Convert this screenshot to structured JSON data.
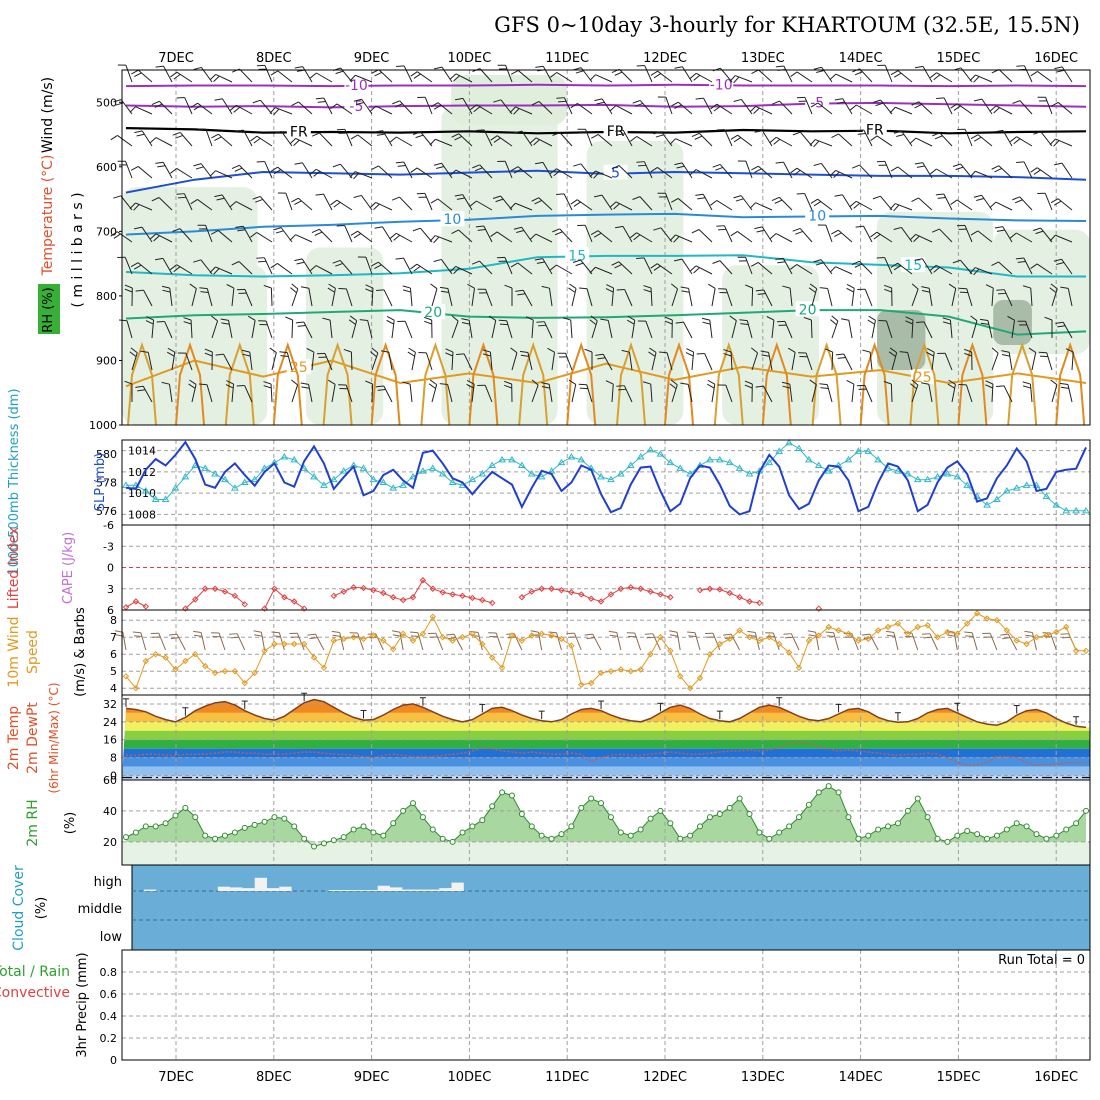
{
  "chart_data": {
    "type": "meteogram",
    "title": "GFS 0~10day 3-hourly for KHARTOUM (32.5E, 15.5N)",
    "dates": [
      "7DEC",
      "8DEC",
      "9DEC",
      "10DEC",
      "11DEC",
      "12DEC",
      "13DEC",
      "14DEC",
      "15DEC",
      "16DEC"
    ],
    "run_total_text": "Run Total = 0",
    "panels": [
      {
        "id": "upper-air",
        "labels": [
          {
            "text": "Wind (m/s)",
            "color": "#000000"
          },
          {
            "text": "Temperature (°C)",
            "color": "#e0502a"
          },
          {
            "text": "RH (%)",
            "color": "#000000",
            "bg": "#38b038"
          },
          {
            "text": "( m i l l i b a r s )",
            "color": "#000000"
          }
        ],
        "ylim": [
          1000,
          450
        ],
        "yticks": [
          500,
          600,
          700,
          800,
          900,
          1000
        ],
        "isotherms": [
          {
            "t": -10,
            "p": [
              475,
              474,
              474,
              475,
              474,
              474,
              473,
              474,
              473,
              474,
              474,
              474,
              475,
              474,
              475
            ],
            "color": "#9b30c0",
            "label": "-10",
            "label_x": [
              0.24,
              0.62
            ]
          },
          {
            "t": -5,
            "p": [
              505,
              507,
              506,
              508,
              506,
              505,
              505,
              504,
              507,
              506,
              502,
              501,
              503,
              505,
              507
            ],
            "color": "#9b30c0",
            "label": "-5",
            "label_x": [
              0.24,
              0.72
            ]
          },
          {
            "t": "FR",
            "p": [
              540,
              542,
              547,
              546,
              547,
              545,
              548,
              546,
              547,
              543,
              545,
              544,
              548,
              546,
              545
            ],
            "color": "#000000",
            "label": "FR",
            "label_x": [
              0.18,
              0.51,
              0.78
            ]
          },
          {
            "t": 5,
            "p": [
              640,
              620,
              608,
              610,
              612,
              609,
              606,
              611,
              608,
              610,
              612,
              614,
              614,
              616,
              620
            ],
            "color": "#1f4fd0",
            "label": "5",
            "label_x": [
              0.51
            ]
          },
          {
            "t": 10,
            "p": [
              705,
              700,
              693,
              690,
              685,
              682,
              676,
              674,
              673,
              678,
              677,
              676,
              680,
              683,
              684
            ],
            "color": "#2a8ad8",
            "label": "10",
            "label_x": [
              0.34,
              0.72
            ]
          },
          {
            "t": 15,
            "p": [
              763,
              768,
              770,
              768,
              765,
              758,
              740,
              738,
              738,
              737,
              748,
              752,
              756,
              770,
              770
            ],
            "color": "#20b8c4",
            "label": "15",
            "label_x": [
              0.47,
              0.82
            ]
          },
          {
            "t": 20,
            "p": [
              835,
              830,
              828,
              825,
              822,
              832,
              834,
              833,
              830,
              826,
              822,
              822,
              832,
              860,
              855
            ],
            "color": "#20a878",
            "label": "20",
            "label_x": [
              0.32,
              0.71
            ]
          },
          {
            "t": 25,
            "p": [
              940,
              900,
              925,
              900,
              935,
              920,
              935,
              905,
              930,
              910,
              925,
              915,
              935,
              920,
              935
            ],
            "color": "#e09a20",
            "label": "25",
            "label_x": [
              0.18,
              0.83
            ]
          }
        ]
      },
      {
        "id": "slp-thickness",
        "left_label": {
          "text": "1000-500mb Thickness (dm)",
          "color": "#20a0c0"
        },
        "right_label": {
          "text": "SLP (mb)",
          "color": "#1f4fd0"
        },
        "thickness_ticks": [
          576,
          578,
          580
        ],
        "slp_ticks": [
          1008,
          1010,
          1012,
          1014
        ],
        "slp_ylim": [
          1007,
          1015
        ],
        "slp": [
          1010.5,
          1010.4,
          1012.2,
          1013.2,
          1012.6,
          1013.6,
          1014.8,
          1013.2,
          1010.8,
          1010.5,
          1012.0,
          1012.8,
          1011.7,
          1010.7,
          1012.0,
          1012.8,
          1011.0,
          1010.6,
          1013.0,
          1014.4,
          1012.8,
          1010.4,
          1011.5,
          1012.5,
          1009.8,
          1010.2,
          1011.7,
          1012.2,
          1011.2,
          1010.5,
          1013.8,
          1014.0,
          1012.8,
          1011.4,
          1011.0,
          1009.9,
          1011.0,
          1012.0,
          1011.4,
          1010.8,
          1008.7,
          1010.5,
          1012.1,
          1011.8,
          1010.2,
          1011.0,
          1012.6,
          1012.2,
          1009.9,
          1008.2,
          1008.6,
          1010.8,
          1012.4,
          1012.5,
          1010.2,
          1008.3,
          1009.0,
          1011.4,
          1012.6,
          1012.4,
          1010.8,
          1008.8,
          1008.0,
          1008.3,
          1012.0,
          1013.6,
          1012.5,
          1009.8,
          1008.5,
          1009.0,
          1011.2,
          1012.6,
          1012.5,
          1011.2,
          1008.3,
          1008.7,
          1011.0,
          1012.8,
          1012.5,
          1011.2,
          1008.3,
          1008.9,
          1011.0,
          1012.4,
          1013.0,
          1011.8,
          1009.2,
          1009.5,
          1011.4,
          1012.6,
          1014.2,
          1013.0,
          1010.2,
          1010.4,
          1012.0,
          1012.2,
          1012.3,
          1014.3
        ],
        "thickness": [
          577.8,
          577.8,
          577.4,
          576.8,
          576.8,
          577.6,
          578.4,
          579.2,
          579.0,
          578.6,
          578.2,
          577.6,
          578.0,
          578.2,
          579.0,
          579.4,
          579.8,
          579.6,
          579.0,
          578.4,
          577.8,
          578.2,
          578.8,
          579.2,
          579.0,
          578.2,
          578.0,
          577.6,
          577.8,
          578.4,
          578.8,
          579.0,
          578.6,
          578.0,
          577.8,
          578.2,
          578.6,
          579.2,
          579.6,
          579.6,
          579.2,
          578.6,
          578.4,
          578.8,
          579.4,
          579.8,
          579.6,
          579.0,
          578.4,
          578.2,
          578.6,
          579.2,
          579.8,
          580.3,
          580.0,
          579.4,
          579.0,
          578.6,
          579.2,
          579.6,
          579.6,
          579.4,
          579.0,
          578.6,
          578.8,
          579.4,
          580.2,
          580.8,
          580.4,
          579.6,
          579.2,
          578.8,
          579.2,
          579.6,
          580.2,
          580.2,
          579.6,
          579.0,
          578.8,
          578.6,
          578.2,
          578.2,
          578.4,
          578.6,
          578.4,
          577.8,
          577.0,
          576.4,
          576.8,
          577.4,
          577.6,
          577.8,
          577.8,
          577.0,
          576.4,
          576.0,
          576.0,
          576.0
        ]
      },
      {
        "id": "cape-li",
        "left_label": {
          "text": "Lifted Index",
          "color": "#e04040"
        },
        "right_label": {
          "text": "CAPE (J/kg)",
          "color": "#c070d0"
        },
        "yticks": [
          -6,
          -3,
          0,
          3,
          6
        ],
        "ylim": [
          -6,
          6
        ],
        "lifted_index": [
          5.6,
          4.8,
          5.5,
          null,
          null,
          null,
          5.8,
          4.5,
          3.0,
          3.0,
          3.4,
          4.0,
          5.2,
          null,
          5.8,
          3.0,
          4.2,
          4.8,
          5.8,
          null,
          null,
          4.0,
          3.4,
          2.8,
          2.9,
          3.2,
          3.6,
          4.2,
          4.6,
          4.2,
          1.8,
          3.0,
          3.5,
          3.8,
          4.0,
          4.3,
          4.6,
          5.0,
          null,
          null,
          4.2,
          3.4,
          3.0,
          3.0,
          3.2,
          3.5,
          3.8,
          4.4,
          4.8,
          3.8,
          3.0,
          2.8,
          3.0,
          3.4,
          3.8,
          4.2,
          null,
          null,
          3.2,
          3.0,
          3.1,
          3.6,
          4.2,
          4.8,
          5.0,
          null,
          null,
          null,
          null,
          null,
          5.8,
          null,
          null,
          null,
          null,
          null,
          null,
          null,
          null,
          null,
          null,
          null,
          null,
          null,
          null,
          null,
          null,
          null,
          null,
          null,
          null,
          null,
          null,
          null,
          null,
          null,
          null,
          null
        ]
      },
      {
        "id": "wind10m",
        "left_label": {
          "text": "10m Wind",
          "color": "#e09a20"
        },
        "mid_label": {
          "text": "Speed",
          "color": "#e09a20"
        },
        "right_label": {
          "text": "(m/s) & Barbs",
          "color": "#000000"
        },
        "yticks": [
          4,
          5,
          6,
          7,
          8
        ],
        "ylim": [
          3.6,
          8.6
        ],
        "speed": [
          4.7,
          4.0,
          5.6,
          6.0,
          5.8,
          5.1,
          5.6,
          6.0,
          5.3,
          4.9,
          5.0,
          5.0,
          4.3,
          4.9,
          6.2,
          6.6,
          6.6,
          6.6,
          6.6,
          5.8,
          5.2,
          6.8,
          6.9,
          7.0,
          6.9,
          7.1,
          6.8,
          6.3,
          7.2,
          6.8,
          7.2,
          8.2,
          7.0,
          6.8,
          7.0,
          7.2,
          6.6,
          5.8,
          5.2,
          7.1,
          6.8,
          7.1,
          7.2,
          7.1,
          6.9,
          6.5,
          4.2,
          4.3,
          4.9,
          5.0,
          5.1,
          5.0,
          5.1,
          6.0,
          7.0,
          6.2,
          4.7,
          4.0,
          4.6,
          6.0,
          6.6,
          6.9,
          7.4,
          7.0,
          6.8,
          7.0,
          6.6,
          6.1,
          5.2,
          6.8,
          7.1,
          7.6,
          7.4,
          7.2,
          6.8,
          6.9,
          7.4,
          7.6,
          7.8,
          7.2,
          7.6,
          7.7,
          7.0,
          7.3,
          7.2,
          7.8,
          8.4,
          8.1,
          8.0,
          7.4,
          6.8,
          6.6,
          7.0,
          7.1,
          7.3,
          7.6,
          6.2,
          6.2
        ]
      },
      {
        "id": "temp2m",
        "left_label": {
          "text": "2m Temp",
          "color": "#e0502a"
        },
        "mid_label": {
          "text": "2m DewPt",
          "color": "#e0502a"
        },
        "right_label": {
          "text": "(6hr Min/Max) (°C)",
          "color": "#e0502a"
        },
        "yticks": [
          0,
          8,
          16,
          24,
          32
        ],
        "ylim": [
          -2,
          36
        ],
        "temp": [
          30.0,
          29.5,
          28.5,
          26.5,
          25.0,
          24.0,
          26.0,
          29.0,
          31.0,
          32.5,
          33.0,
          31.5,
          29.0,
          27.0,
          25.5,
          24.8,
          26.5,
          29.5,
          32.5,
          34.0,
          33.0,
          30.5,
          28.0,
          26.0,
          24.8,
          25.0,
          27.0,
          29.5,
          31.5,
          32.0,
          30.5,
          28.5,
          26.5,
          25.0,
          24.0,
          25.0,
          27.5,
          30.0,
          30.5,
          29.0,
          27.0,
          25.5,
          24.5,
          24.0,
          25.0,
          27.5,
          29.5,
          30.0,
          29.0,
          27.0,
          25.5,
          24.5,
          24.0,
          25.5,
          28.0,
          30.5,
          31.5,
          30.0,
          27.5,
          25.5,
          24.5,
          24.0,
          25.5,
          28.0,
          30.5,
          31.5,
          30.5,
          28.5,
          26.5,
          25.0,
          24.5,
          25.5,
          27.5,
          29.5,
          30.0,
          28.5,
          26.0,
          24.5,
          23.8,
          24.0,
          25.5,
          28.0,
          29.5,
          30.0,
          28.0,
          26.0,
          24.0,
          23.0,
          22.5,
          24.0,
          27.0,
          29.0,
          29.5,
          28.0,
          25.5,
          23.5,
          22.0,
          21.5
        ],
        "dewpt": [
          9.0,
          9.0,
          9.5,
          9.5,
          9.0,
          9.0,
          9.5,
          9.5,
          9.5,
          10.0,
          10.5,
          10.5,
          10.0,
          10.0,
          9.5,
          9.5,
          9.5,
          10.0,
          10.5,
          10.5,
          10.0,
          9.5,
          9.5,
          9.0,
          8.5,
          8.0,
          9.0,
          9.5,
          9.0,
          8.5,
          8.5,
          8.5,
          9.0,
          9.5,
          10.0,
          11.0,
          12.5,
          12.0,
          11.0,
          10.5,
          10.0,
          10.5,
          10.0,
          9.5,
          9.5,
          10.0,
          9.5,
          6.0,
          8.0,
          9.0,
          9.5,
          9.0,
          9.0,
          9.5,
          10.0,
          10.5,
          10.0,
          9.5,
          9.5,
          10.0,
          10.5,
          11.0,
          11.0,
          11.5,
          11.0,
          11.5,
          12.5,
          14.5,
          15.0,
          14.5,
          13.0,
          12.0,
          11.0,
          11.5,
          11.0,
          10.5,
          10.0,
          9.5,
          9.0,
          9.5,
          9.5,
          10.0,
          9.5,
          8.0,
          6.0,
          4.5,
          4.5,
          6.0,
          8.5,
          8.5,
          8.0,
          6.0,
          4.5,
          5.0,
          5.0,
          5.5,
          6.0,
          5.5
        ]
      },
      {
        "id": "rh2m",
        "left_label": {
          "text": "2m RH",
          "color": "#2ea02e"
        },
        "right_label": {
          "text": "(%)",
          "color": "#000000"
        },
        "yticks": [
          20,
          40,
          60
        ],
        "ylim": [
          5,
          60
        ],
        "rh": [
          23,
          26,
          30,
          30,
          32,
          37,
          42,
          36,
          24,
          22,
          24,
          26,
          29,
          31,
          33,
          36,
          35,
          30,
          22,
          17,
          19,
          21,
          23,
          28,
          30,
          26,
          24,
          32,
          40,
          45,
          36,
          28,
          22,
          20,
          26,
          30,
          34,
          43,
          52,
          50,
          38,
          30,
          24,
          22,
          25,
          30,
          42,
          48,
          45,
          36,
          26,
          24,
          28,
          35,
          40,
          32,
          22,
          24,
          30,
          36,
          38,
          42,
          48,
          38,
          26,
          22,
          26,
          30,
          36,
          44,
          52,
          56,
          52,
          36,
          22,
          24,
          28,
          30,
          32,
          40,
          48,
          36,
          22,
          20,
          24,
          27,
          25,
          22,
          24,
          28,
          32,
          30,
          25,
          22,
          24,
          28,
          32,
          40
        ]
      },
      {
        "id": "cloud",
        "left_label": {
          "text": "Cloud Cover",
          "color": "#20a0c0"
        },
        "right_label": {
          "text": "(%)",
          "color": "#000000"
        },
        "ylevels": [
          "high",
          "middle",
          "low"
        ],
        "high_cloud": [
          0.06,
          0,
          0,
          0,
          0,
          0,
          0.18,
          0.15,
          0.12,
          0.55,
          0.12,
          0.18,
          0,
          0,
          0,
          0.04,
          0.04,
          0.04,
          0.04,
          0.22,
          0.15,
          0.06,
          0.06,
          0.06,
          0.12,
          0.35
        ]
      },
      {
        "id": "precip",
        "left_label": {
          "text": "Total / Rain",
          "color": "#2ea02e"
        },
        "left_label2": {
          "text": "Convective",
          "color": "#e04040"
        },
        "right_label": {
          "text": "3hr Precip (mm)",
          "color": "#000000"
        },
        "yticks": [
          0,
          0.2,
          0.4,
          0.6,
          0.8
        ],
        "ylim": [
          0,
          1.0
        ],
        "values": []
      }
    ]
  }
}
